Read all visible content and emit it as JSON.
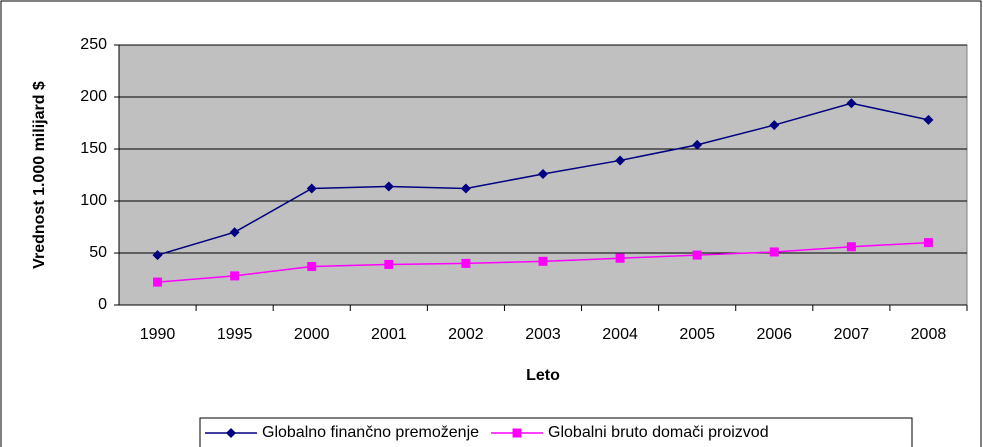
{
  "chart_data": {
    "type": "line",
    "xlabel": "Leto",
    "ylabel": "Vrednost 1.000 milijard $",
    "categories": [
      "1990",
      "1995",
      "2000",
      "2001",
      "2002",
      "2003",
      "2004",
      "2005",
      "2006",
      "2007",
      "2008"
    ],
    "series": [
      {
        "name": "Globalno finančno premoženje",
        "color": "#000080",
        "marker": "diamond",
        "values": [
          48,
          70,
          112,
          114,
          112,
          126,
          139,
          154,
          173,
          194,
          178
        ]
      },
      {
        "name": "Globalni bruto domači proizvod",
        "color": "#ff00ff",
        "marker": "square",
        "values": [
          22,
          28,
          37,
          39,
          40,
          42,
          45,
          48,
          51,
          56,
          60
        ]
      }
    ],
    "ylim": [
      0,
      250
    ],
    "yticks": [
      0,
      50,
      100,
      150,
      200,
      250
    ],
    "grid": true,
    "legend": "bottom"
  }
}
